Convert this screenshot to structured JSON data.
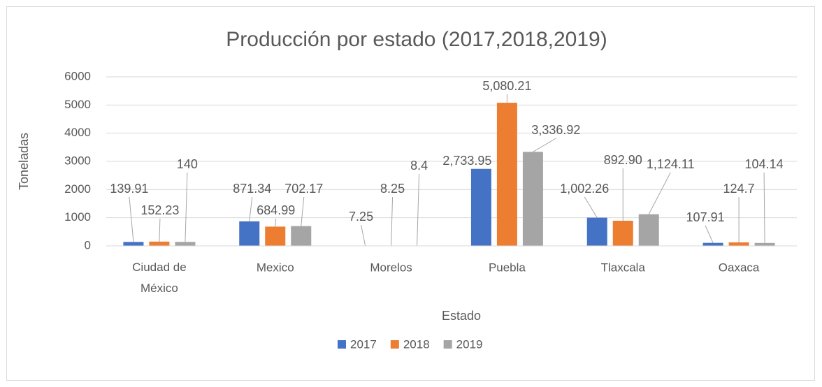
{
  "chart_data": {
    "type": "bar",
    "title": "Producción por estado (2017,2018,2019)",
    "x_label": "Estado",
    "y_label": "Toneladas",
    "categories": [
      "Ciudad de México",
      "Mexico",
      "Morelos",
      "Puebla",
      "Tlaxcala",
      "Oaxaca"
    ],
    "series": [
      {
        "name": "2017",
        "color": "#4472c4",
        "values": [
          139.91,
          871.34,
          7.25,
          2733.95,
          1002.26,
          107.91
        ],
        "value_labels": [
          "139.91",
          "871.34",
          "7.25",
          "2,733.95",
          "1,002.26",
          "107.91"
        ]
      },
      {
        "name": "2018",
        "color": "#ed7d31",
        "values": [
          152.23,
          684.99,
          8.25,
          5080.21,
          892.9,
          124.7
        ],
        "value_labels": [
          "152.23",
          "684.99",
          "8.25",
          "5,080.21",
          "892.90",
          "124.7"
        ]
      },
      {
        "name": "2019",
        "color": "#a5a5a5",
        "values": [
          140,
          702.17,
          8.4,
          3336.92,
          1124.11,
          104.14
        ],
        "value_labels": [
          "140",
          "702.17",
          "8.4",
          "3,336.92",
          "1,124.11",
          "104.14"
        ]
      }
    ],
    "ylim": [
      0,
      6000
    ],
    "yticks": [
      0,
      1000,
      2000,
      3000,
      4000,
      5000,
      6000
    ],
    "grid": true,
    "legend": "bottom"
  }
}
